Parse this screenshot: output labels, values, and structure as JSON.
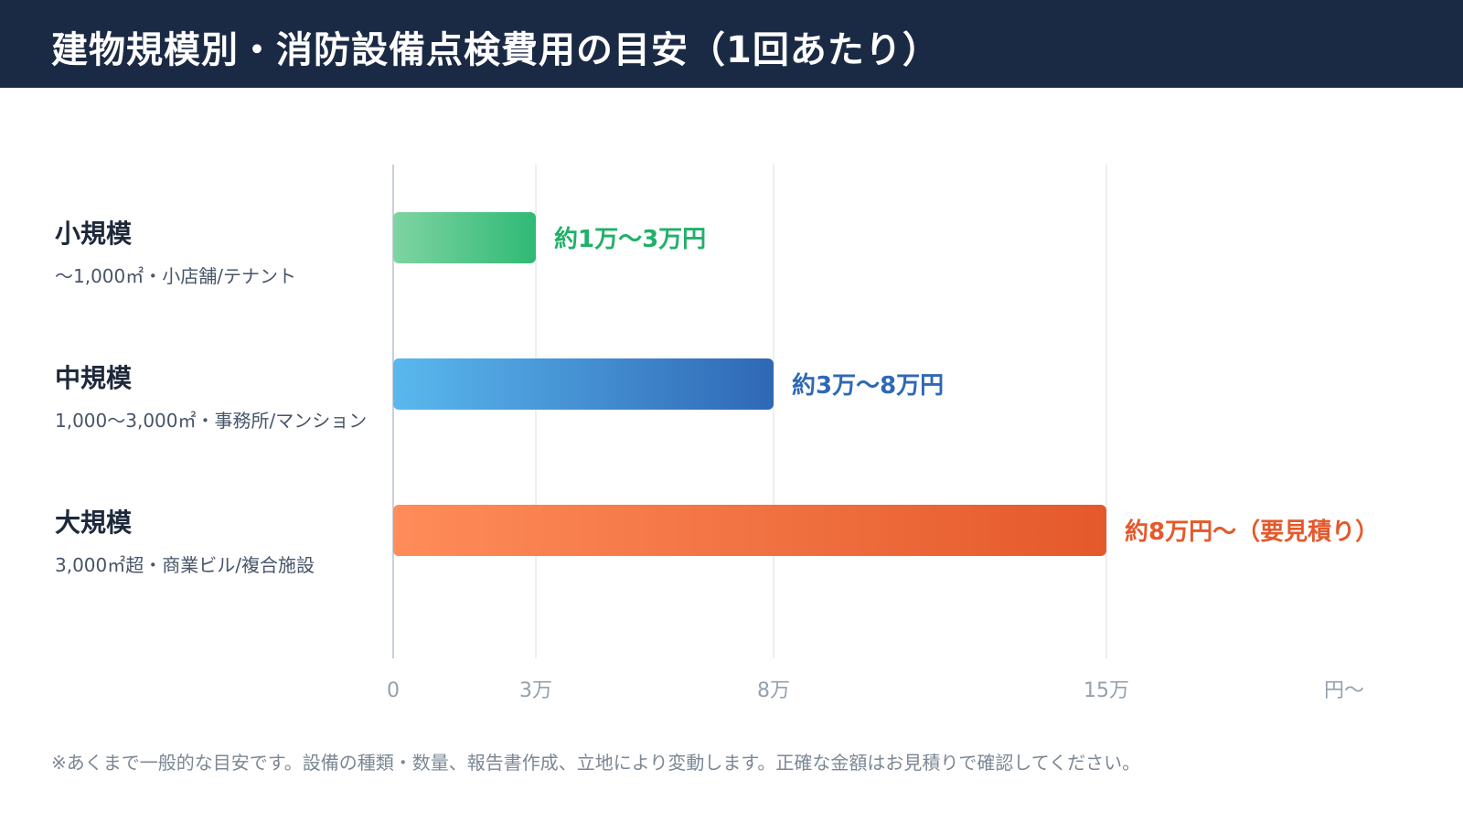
{
  "header": {
    "title": "建物規模別・消防設備点検費用の目安（1回あたり）"
  },
  "chart_data": {
    "type": "bar",
    "orientation": "horizontal",
    "categories": [
      "小規模",
      "中規模",
      "大規模"
    ],
    "descriptions": [
      "〜1,000㎡・小店舗/テナント",
      "1,000〜3,000㎡・事務所/マンション",
      "3,000㎡超・商業ビル/複合施設"
    ],
    "values": [
      3,
      8,
      15
    ],
    "value_labels": [
      "約1万〜3万円",
      "約3万〜8万円",
      "約8万円〜（要見積り）"
    ],
    "colors": [
      {
        "from": "#7fd4a2",
        "to": "#2fba74",
        "label": "#22b06a"
      },
      {
        "from": "#5ab8ee",
        "to": "#2f68b6",
        "label": "#2f68b6"
      },
      {
        "from": "#ff8c5a",
        "to": "#e4592b",
        "label": "#e4592b"
      }
    ],
    "x_ticks": [
      {
        "value": 0,
        "label": "0"
      },
      {
        "value": 3,
        "label": "3万"
      },
      {
        "value": 8,
        "label": "8万"
      },
      {
        "value": 15,
        "label": "15万"
      },
      {
        "value": 20,
        "label": "円〜"
      }
    ],
    "xlim": [
      0,
      20
    ],
    "grid": true
  },
  "footnote": "※あくまで一般的な目安です。設備の種類・数量、報告書作成、立地により変動します。正確な金額はお見積りで確認してください。"
}
